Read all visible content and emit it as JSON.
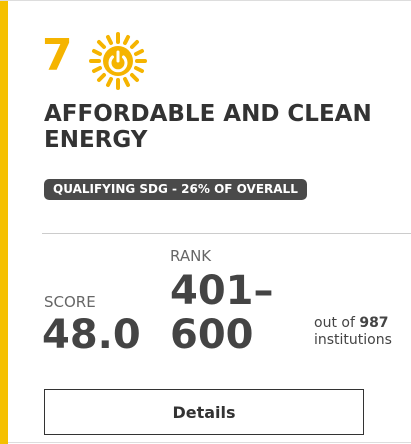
{
  "card": {
    "goal_number": 7,
    "title": "AFFORDABLE AND CLEAN ENERGY",
    "badge": "QUALIFYING SDG - 26% OF OVERALL",
    "rank_label": "RANK",
    "rank": "401–600",
    "score_label": "SCORE",
    "score": "48.0",
    "out_of_prefix": "out of",
    "total": 987,
    "out_of_suffix": "institutions",
    "button": "Details"
  }
}
